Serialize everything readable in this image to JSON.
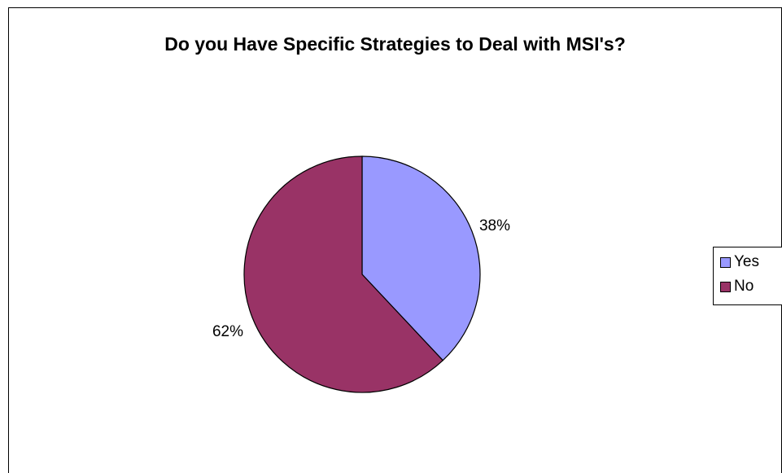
{
  "chart_data": {
    "type": "pie",
    "title": "Do you Have Specific Strategies to Deal with MSI's?",
    "categories": [
      "Yes",
      "No"
    ],
    "values": [
      38,
      62
    ],
    "data_labels": [
      "38%",
      "62%"
    ],
    "colors": [
      "#9999ff",
      "#993366"
    ],
    "legend_position": "right"
  }
}
